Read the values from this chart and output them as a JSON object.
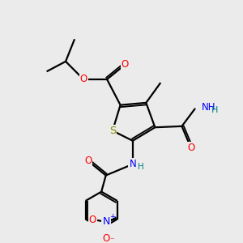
{
  "bg_color": "#ebebeb",
  "line_color": "#000000",
  "bond_width": 1.6,
  "colors": {
    "C": "#000000",
    "O": "#ff0000",
    "N": "#0000ff",
    "S": "#888800",
    "H": "#008080"
  },
  "font_size": 8.5,
  "xlim": [
    0,
    10
  ],
  "ylim": [
    0,
    10
  ]
}
